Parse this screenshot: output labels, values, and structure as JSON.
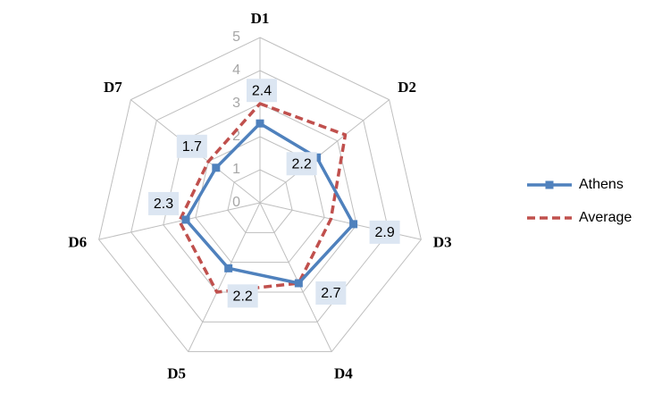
{
  "chart_data": {
    "type": "radar",
    "categories": [
      "D1",
      "D2",
      "D3",
      "D4",
      "D5",
      "D6",
      "D7"
    ],
    "series": [
      {
        "name": "Athens",
        "color": "#4f81bd",
        "values": [
          2.4,
          2.2,
          2.9,
          2.7,
          2.2,
          2.3,
          1.7
        ],
        "data_labels": true,
        "marker": "square",
        "dash": false
      },
      {
        "name": "Average",
        "color": "#c0504d",
        "values": [
          3.0,
          3.3,
          2.2,
          2.7,
          3.0,
          2.5,
          2.0
        ],
        "data_labels": false,
        "marker": "none",
        "dash": true
      }
    ],
    "ylim": [
      0,
      5
    ],
    "yticks": [
      0,
      1,
      2,
      3,
      4,
      5
    ],
    "grid": true,
    "legend": "right"
  }
}
